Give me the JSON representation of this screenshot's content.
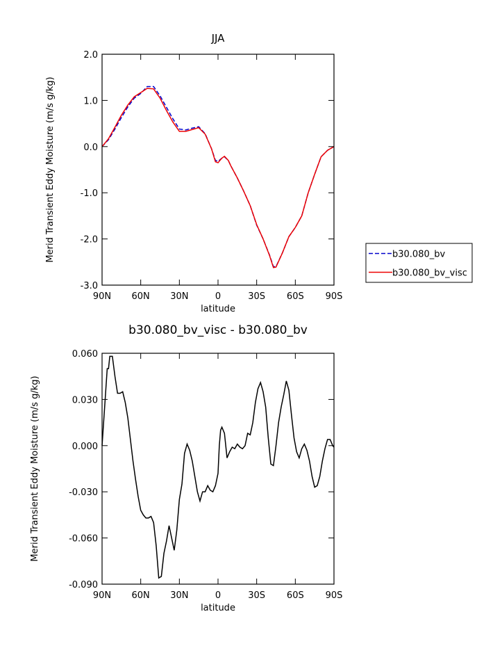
{
  "chart_data": [
    {
      "type": "line",
      "title": "JJA",
      "xlabel": "latitude",
      "ylabel": "Merid Transient Eddy Moisture (m/s g/kg)",
      "xlim": [
        90,
        -90
      ],
      "xticks": [
        {
          "value": 90,
          "label": "90N"
        },
        {
          "value": 60,
          "label": "60N"
        },
        {
          "value": 30,
          "label": "30N"
        },
        0,
        {
          "value": -30,
          "label": "30S"
        },
        {
          "value": -60,
          "label": "60S"
        },
        {
          "value": -90,
          "label": "90S"
        }
      ],
      "ylim": [
        -3,
        2
      ],
      "yticks": [
        {
          "value": -3,
          "label": "-3.0"
        },
        {
          "value": -2,
          "label": "-2.0"
        },
        {
          "value": -1,
          "label": "-1.0"
        },
        {
          "value": 0,
          "label": "0.0"
        },
        {
          "value": 1,
          "label": "1.0"
        },
        {
          "value": 2,
          "label": "2.0"
        }
      ],
      "legend": "right",
      "x": [
        90,
        85,
        80,
        75,
        70,
        65,
        60,
        55,
        50,
        45,
        40,
        35,
        30,
        25,
        20,
        15,
        10,
        5,
        2,
        0,
        -3,
        -5,
        -8,
        -10,
        -15,
        -20,
        -25,
        -30,
        -35,
        -40,
        -43,
        -45,
        -50,
        -55,
        -60,
        -65,
        -70,
        -75,
        -80,
        -85,
        -90
      ],
      "series": [
        {
          "name": "b30.080_bv",
          "color": "#0000cc",
          "dashed": true,
          "values": [
            0,
            0.15,
            0.38,
            0.63,
            0.86,
            1.05,
            1.15,
            1.3,
            1.3,
            1.1,
            0.85,
            0.6,
            0.38,
            0.36,
            0.4,
            0.43,
            0.28,
            -0.05,
            -0.3,
            -0.32,
            -0.25,
            -0.22,
            -0.3,
            -0.42,
            -0.68,
            -0.97,
            -1.28,
            -1.7,
            -2.0,
            -2.35,
            -2.6,
            -2.6,
            -2.3,
            -1.95,
            -1.75,
            -1.5,
            -1.0,
            -0.6,
            -0.22,
            -0.08,
            0
          ]
        },
        {
          "name": "b30.080_bv_visc",
          "color": "#ee0000",
          "dashed": false,
          "values": [
            0,
            0.17,
            0.42,
            0.68,
            0.9,
            1.08,
            1.17,
            1.26,
            1.25,
            1.05,
            0.78,
            0.53,
            0.33,
            0.33,
            0.37,
            0.41,
            0.27,
            -0.05,
            -0.33,
            -0.35,
            -0.25,
            -0.21,
            -0.3,
            -0.42,
            -0.68,
            -0.97,
            -1.28,
            -1.69,
            -2.0,
            -2.36,
            -2.62,
            -2.61,
            -2.3,
            -1.95,
            -1.75,
            -1.5,
            -1.0,
            -0.6,
            -0.22,
            -0.08,
            0
          ]
        }
      ]
    },
    {
      "type": "line",
      "title": "b30.080_bv_visc - b30.080_bv",
      "xlabel": "latitude",
      "ylabel": "Merid Transient Eddy Moisture (m/s g/kg)",
      "xlim": [
        90,
        -90
      ],
      "xticks": [
        {
          "value": 90,
          "label": "90N"
        },
        {
          "value": 60,
          "label": "60N"
        },
        {
          "value": 30,
          "label": "30N"
        },
        0,
        {
          "value": -30,
          "label": "30S"
        },
        {
          "value": -60,
          "label": "60S"
        },
        {
          "value": -90,
          "label": "90S"
        }
      ],
      "ylim": [
        -0.09,
        0.06
      ],
      "yticks": [
        {
          "value": -0.09,
          "label": "-0.090"
        },
        {
          "value": -0.06,
          "label": "-0.060"
        },
        {
          "value": -0.03,
          "label": "-0.030"
        },
        {
          "value": 0,
          "label": "0.000"
        },
        {
          "value": 0.03,
          "label": "0.030"
        },
        {
          "value": 0.06,
          "label": "0.060"
        }
      ],
      "x": [
        90,
        88,
        86,
        85,
        84,
        82,
        80,
        78,
        76,
        74,
        72,
        70,
        68,
        66,
        64,
        62,
        60,
        58,
        56,
        54,
        52,
        50,
        48,
        46,
        44,
        42,
        40,
        38,
        36,
        34,
        32,
        30,
        28,
        26,
        24,
        22,
        20,
        18,
        16,
        14,
        12,
        10,
        8,
        6,
        4,
        2,
        0,
        -1,
        -2,
        -3,
        -5,
        -7,
        -9,
        -11,
        -13,
        -15,
        -17,
        -19,
        -21,
        -23,
        -25,
        -27,
        -29,
        -31,
        -33,
        -35,
        -37,
        -39,
        -41,
        -43,
        -45,
        -47,
        -49,
        -51,
        -53,
        -55,
        -57,
        -59,
        -61,
        -63,
        -65,
        -67,
        -69,
        -71,
        -73,
        -75,
        -77,
        -79,
        -81,
        -83,
        -85,
        -87,
        -89,
        -90
      ],
      "series": [
        {
          "color": "#000000",
          "values": [
            0,
            0.025,
            0.05,
            0.05,
            0.058,
            0.058,
            0.045,
            0.034,
            0.034,
            0.035,
            0.028,
            0.018,
            0.004,
            -0.01,
            -0.022,
            -0.033,
            -0.042,
            -0.045,
            -0.047,
            -0.047,
            -0.046,
            -0.05,
            -0.065,
            -0.086,
            -0.085,
            -0.07,
            -0.062,
            -0.052,
            -0.06,
            -0.068,
            -0.055,
            -0.035,
            -0.025,
            -0.005,
            0.001,
            -0.003,
            -0.01,
            -0.02,
            -0.03,
            -0.036,
            -0.03,
            -0.03,
            -0.026,
            -0.029,
            -0.03,
            -0.026,
            -0.018,
            0,
            0.01,
            0.012,
            0.008,
            -0.008,
            -0.004,
            -0.001,
            -0.002,
            0.001,
            -0.001,
            -0.002,
            0,
            0.008,
            0.007,
            0.015,
            0.028,
            0.037,
            0.041,
            0.035,
            0.025,
            0.005,
            -0.012,
            -0.013,
            0,
            0.015,
            0.025,
            0.033,
            0.042,
            0.036,
            0.02,
            0.005,
            -0.004,
            -0.008,
            -0.002,
            0.001,
            -0.003,
            -0.01,
            -0.02,
            -0.027,
            -0.026,
            -0.02,
            -0.01,
            -0.002,
            0.004,
            0.004,
            0,
            -0.001
          ]
        }
      ]
    }
  ]
}
